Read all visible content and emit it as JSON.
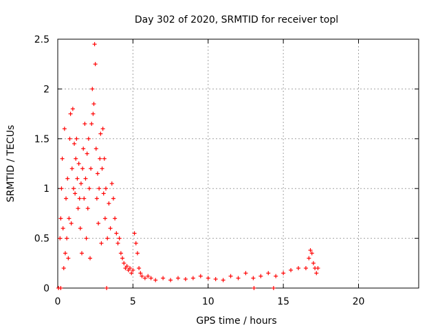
{
  "chart_data": {
    "type": "scatter",
    "title": "Day 302 of 2020, SRMTID for receiver topl",
    "xlabel": "GPS time / hours",
    "ylabel": "SRMTID / TECUs",
    "xlim": [
      0,
      24
    ],
    "ylim": [
      0,
      2.5
    ],
    "grid": true,
    "marker": "+",
    "color": "#ff0000",
    "x_ticks": [
      0,
      5,
      10,
      15,
      20
    ],
    "x_tick_labels": [
      "0",
      "5",
      "10",
      "15",
      "20"
    ],
    "y_ticks": [
      0,
      0.5,
      1,
      1.5,
      2,
      2.5
    ],
    "y_tick_labels": [
      "0",
      "0.5",
      "1",
      "1.5",
      "2",
      "2.5"
    ],
    "series": [
      {
        "name": "SRMTID",
        "points": [
          [
            0.05,
            0.0
          ],
          [
            0.2,
            0.0
          ],
          [
            3.25,
            0.0
          ],
          [
            13.05,
            0.0
          ],
          [
            14.35,
            0.0
          ],
          [
            0.15,
            0.5
          ],
          [
            0.2,
            0.7
          ],
          [
            0.25,
            1.0
          ],
          [
            0.3,
            1.3
          ],
          [
            0.35,
            0.6
          ],
          [
            0.4,
            0.2
          ],
          [
            0.45,
            1.6
          ],
          [
            0.5,
            0.35
          ],
          [
            0.55,
            0.9
          ],
          [
            0.6,
            0.5
          ],
          [
            0.65,
            1.1
          ],
          [
            0.7,
            0.3
          ],
          [
            0.75,
            0.7
          ],
          [
            0.8,
            1.5
          ],
          [
            0.85,
            1.75
          ],
          [
            0.9,
            0.65
          ],
          [
            0.95,
            1.2
          ],
          [
            1.0,
            1.8
          ],
          [
            1.05,
            1.0
          ],
          [
            1.1,
            1.45
          ],
          [
            1.15,
            0.95
          ],
          [
            1.2,
            1.3
          ],
          [
            1.25,
            1.5
          ],
          [
            1.3,
            1.1
          ],
          [
            1.35,
            0.8
          ],
          [
            1.4,
            1.25
          ],
          [
            1.45,
            0.9
          ],
          [
            1.5,
            0.6
          ],
          [
            1.55,
            1.05
          ],
          [
            1.6,
            0.35
          ],
          [
            1.65,
            1.2
          ],
          [
            1.7,
            1.4
          ],
          [
            1.75,
            0.9
          ],
          [
            1.8,
            1.65
          ],
          [
            1.85,
            1.1
          ],
          [
            1.9,
            0.5
          ],
          [
            1.95,
            1.35
          ],
          [
            2.0,
            0.8
          ],
          [
            2.05,
            1.5
          ],
          [
            2.1,
            1.0
          ],
          [
            2.15,
            0.3
          ],
          [
            2.2,
            1.2
          ],
          [
            2.25,
            1.65
          ],
          [
            2.3,
            2.0
          ],
          [
            2.35,
            1.75
          ],
          [
            2.4,
            1.85
          ],
          [
            2.45,
            2.45
          ],
          [
            2.5,
            2.25
          ],
          [
            2.55,
            1.4
          ],
          [
            2.6,
            0.9
          ],
          [
            2.65,
            1.15
          ],
          [
            2.7,
            0.65
          ],
          [
            2.75,
            1.0
          ],
          [
            2.8,
            1.3
          ],
          [
            2.85,
            1.55
          ],
          [
            2.9,
            0.45
          ],
          [
            2.95,
            1.2
          ],
          [
            3.0,
            1.6
          ],
          [
            3.05,
            0.95
          ],
          [
            3.1,
            1.3
          ],
          [
            3.15,
            0.7
          ],
          [
            3.2,
            1.0
          ],
          [
            3.3,
            0.5
          ],
          [
            3.4,
            0.85
          ],
          [
            3.5,
            0.6
          ],
          [
            3.6,
            1.05
          ],
          [
            3.7,
            0.9
          ],
          [
            3.8,
            0.7
          ],
          [
            3.9,
            0.55
          ],
          [
            4.0,
            0.45
          ],
          [
            4.1,
            0.5
          ],
          [
            4.2,
            0.35
          ],
          [
            4.3,
            0.3
          ],
          [
            4.4,
            0.25
          ],
          [
            4.5,
            0.2
          ],
          [
            4.6,
            0.22
          ],
          [
            4.7,
            0.18
          ],
          [
            4.8,
            0.2
          ],
          [
            4.9,
            0.15
          ],
          [
            5.0,
            0.18
          ],
          [
            5.1,
            0.55
          ],
          [
            5.2,
            0.45
          ],
          [
            5.3,
            0.35
          ],
          [
            5.4,
            0.2
          ],
          [
            5.5,
            0.15
          ],
          [
            5.6,
            0.12
          ],
          [
            5.8,
            0.1
          ],
          [
            6.0,
            0.12
          ],
          [
            6.2,
            0.1
          ],
          [
            6.5,
            0.08
          ],
          [
            7.0,
            0.1
          ],
          [
            7.5,
            0.08
          ],
          [
            8.0,
            0.1
          ],
          [
            8.5,
            0.09
          ],
          [
            9.0,
            0.1
          ],
          [
            9.5,
            0.12
          ],
          [
            10.0,
            0.1
          ],
          [
            10.5,
            0.09
          ],
          [
            11.0,
            0.08
          ],
          [
            11.5,
            0.12
          ],
          [
            12.0,
            0.1
          ],
          [
            12.5,
            0.15
          ],
          [
            13.0,
            0.1
          ],
          [
            13.5,
            0.12
          ],
          [
            14.0,
            0.15
          ],
          [
            14.5,
            0.12
          ],
          [
            15.0,
            0.15
          ],
          [
            15.5,
            0.18
          ],
          [
            16.0,
            0.2
          ],
          [
            16.5,
            0.2
          ],
          [
            16.7,
            0.3
          ],
          [
            16.8,
            0.38
          ],
          [
            16.9,
            0.35
          ],
          [
            17.0,
            0.25
          ],
          [
            17.1,
            0.2
          ],
          [
            17.2,
            0.15
          ],
          [
            17.3,
            0.2
          ]
        ]
      }
    ]
  }
}
